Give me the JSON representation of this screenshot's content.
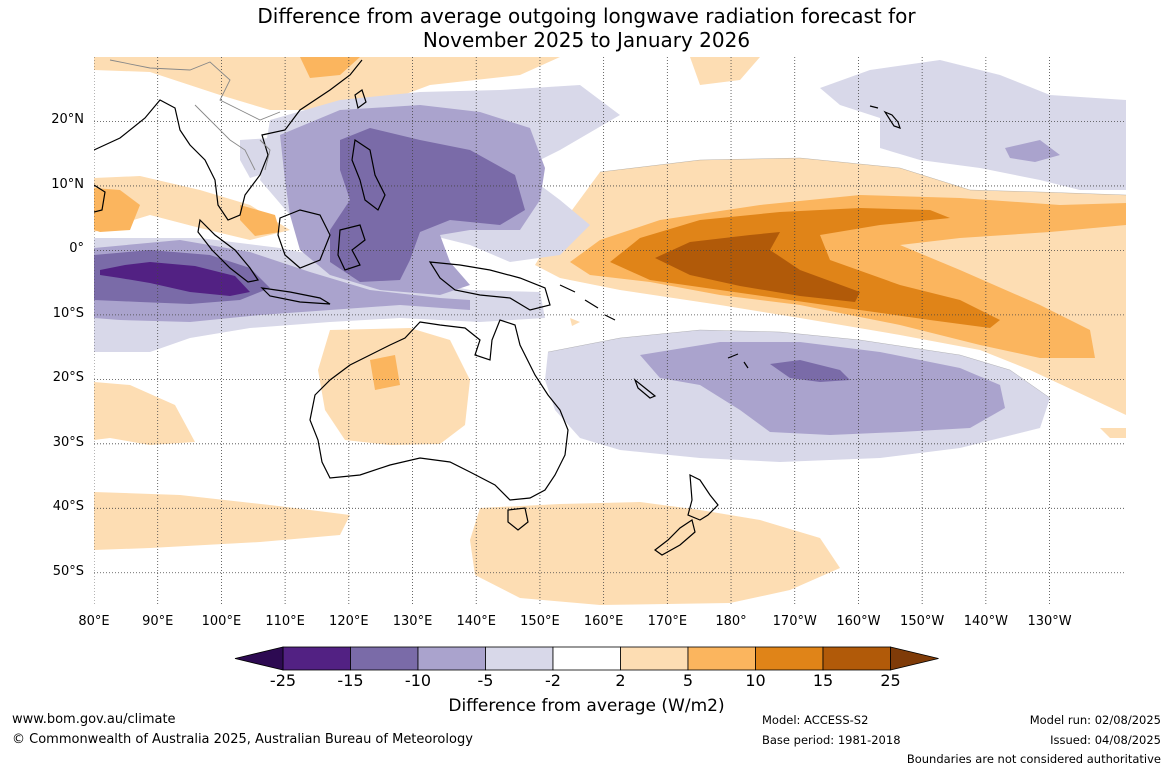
{
  "title": {
    "line1": "Difference from average outgoing longwave radiation forecast for",
    "line2": "November 2025 to January 2026"
  },
  "map": {
    "lon_min": 80,
    "lon_max": 242,
    "lat_min": -55,
    "lat_max": 30,
    "lat_labels": [
      "20°N",
      "10°N",
      "0°",
      "10°S",
      "20°S",
      "30°S",
      "40°S",
      "50°S"
    ],
    "lat_values": [
      20,
      10,
      0,
      -10,
      -20,
      -30,
      -40,
      -50
    ],
    "lon_labels": [
      "80°E",
      "90°E",
      "100°E",
      "110°E",
      "120°E",
      "130°E",
      "140°E",
      "150°E",
      "160°E",
      "170°E",
      "180°",
      "170°W",
      "160°W",
      "150°W",
      "140°W",
      "130°W"
    ],
    "lon_values": [
      80,
      90,
      100,
      110,
      120,
      130,
      140,
      150,
      160,
      170,
      180,
      190,
      200,
      210,
      220,
      230
    ],
    "colors": {
      "lt25": "#2d0a52",
      "m25": "#522183",
      "m15": "#7a6ba8",
      "m10": "#aaa3cd",
      "m5": "#d8d8e9",
      "p2": "#fdddb3",
      "p5": "#fbb55e",
      "p10": "#e08418",
      "p15": "#b15a09",
      "gt25": "#7f3b08"
    }
  },
  "colorbar": {
    "ticks": [
      "-25",
      "-15",
      "-10",
      "-5",
      "-2",
      "2",
      "5",
      "10",
      "15",
      "25"
    ],
    "label": "Difference from average (W/m2)"
  },
  "footer": {
    "url": "www.bom.gov.au/climate",
    "copyright": "© Commonwealth of Australia 2025, Australian Bureau of Meteorology",
    "model": "Model: ACCESS-S2",
    "base_period": "Base period: 1981-2018",
    "model_run": "Model run: 02/08/2025",
    "issued": "Issued: 04/08/2025",
    "disclaimer": "Boundaries are not considered authoritative"
  }
}
